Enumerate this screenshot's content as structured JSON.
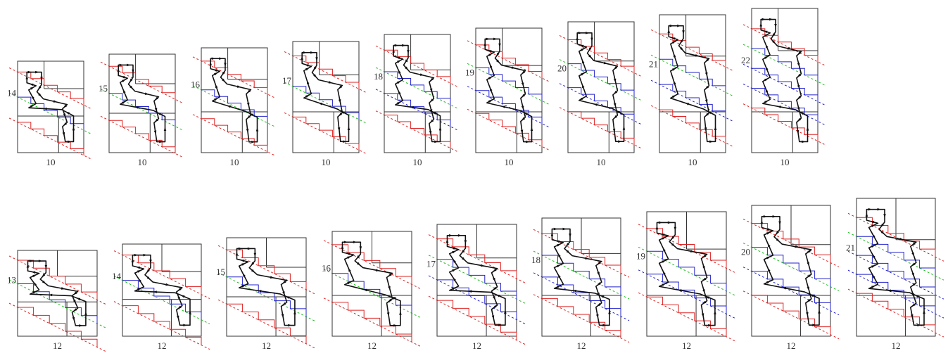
{
  "colors": {
    "frame": "#333333",
    "path": "#111111",
    "red": "#dd2222",
    "blue": "#2222cc",
    "green": "#22bb22"
  },
  "rows": [
    {
      "width_label": "10",
      "panels": [
        {
          "height_label": "14",
          "n_lines": 2
        },
        {
          "height_label": "15",
          "n_lines": 2
        },
        {
          "height_label": "16",
          "n_lines": 2
        },
        {
          "height_label": "17",
          "n_lines": 2
        },
        {
          "height_label": "18",
          "n_lines": 3
        },
        {
          "height_label": "19",
          "n_lines": 3
        },
        {
          "height_label": "20",
          "n_lines": 3
        },
        {
          "height_label": "21",
          "n_lines": 3
        },
        {
          "height_label": "22",
          "n_lines": 4
        }
      ]
    },
    {
      "width_label": "12",
      "panels": [
        {
          "height_label": "13",
          "n_lines": 2
        },
        {
          "height_label": "14",
          "n_lines": 2
        },
        {
          "height_label": "15",
          "n_lines": 2
        },
        {
          "height_label": "16",
          "n_lines": 2
        },
        {
          "height_label": "17",
          "n_lines": 3
        },
        {
          "height_label": "18",
          "n_lines": 3
        },
        {
          "height_label": "19",
          "n_lines": 3
        },
        {
          "height_label": "20",
          "n_lines": 3
        },
        {
          "height_label": "21",
          "n_lines": 4
        }
      ]
    }
  ]
}
